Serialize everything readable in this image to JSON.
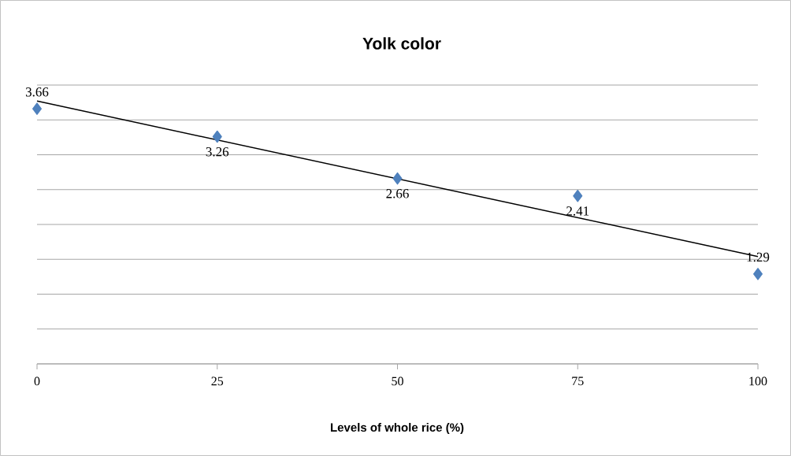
{
  "chart_data": {
    "type": "scatter",
    "title": "Yolk color",
    "xlabel": "Levels of whole rice (%)",
    "x": [
      0,
      25,
      50,
      75,
      100
    ],
    "series": [
      {
        "color": "#4f81bd",
        "values": [
          3.66,
          3.26,
          2.66,
          2.41,
          1.29
        ],
        "value_labels": [
          "3.66",
          "3.26",
          "2.66",
          "2.41",
          "1.29"
        ],
        "marker": "diamond"
      },
      {
        "type": "line",
        "color": "#000000",
        "x": [
          0,
          100
        ],
        "values": [
          3.77,
          1.54
        ],
        "marker": "none",
        "line_style": "solid"
      }
    ],
    "xlim": [
      0,
      100
    ],
    "xticks": [
      0,
      25,
      50,
      75,
      100
    ],
    "ylim": [
      0,
      4
    ],
    "yticks": [
      {
        "value": 0,
        "label": null
      },
      {
        "value": 0.5,
        "label": null
      },
      {
        "value": 1,
        "label": null
      },
      {
        "value": 1.5,
        "label": null
      },
      {
        "value": 2,
        "label": null
      },
      {
        "value": 2.5,
        "label": null
      },
      {
        "value": 3,
        "label": null
      },
      {
        "value": 3.5,
        "label": null
      },
      {
        "value": 4,
        "label": null
      }
    ],
    "grid": "y",
    "tick_labels": "x"
  }
}
